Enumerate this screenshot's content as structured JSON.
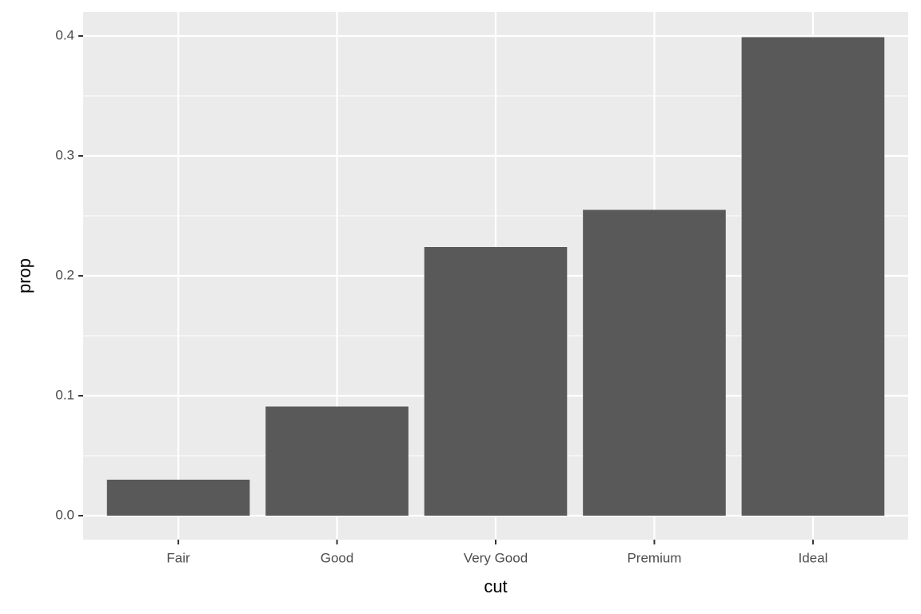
{
  "chart_data": {
    "type": "bar",
    "x_label": "cut",
    "y_label": "prop",
    "categories": [
      "Fair",
      "Good",
      "Very Good",
      "Premium",
      "Ideal"
    ],
    "values": [
      0.03,
      0.091,
      0.224,
      0.255,
      0.399
    ],
    "color": "#595959",
    "ylim": [
      -0.02,
      0.42
    ],
    "yticks": [
      {
        "value": 0,
        "label": "0.0"
      },
      0.1,
      0.2,
      0.3,
      0.4
    ],
    "grid": true
  }
}
